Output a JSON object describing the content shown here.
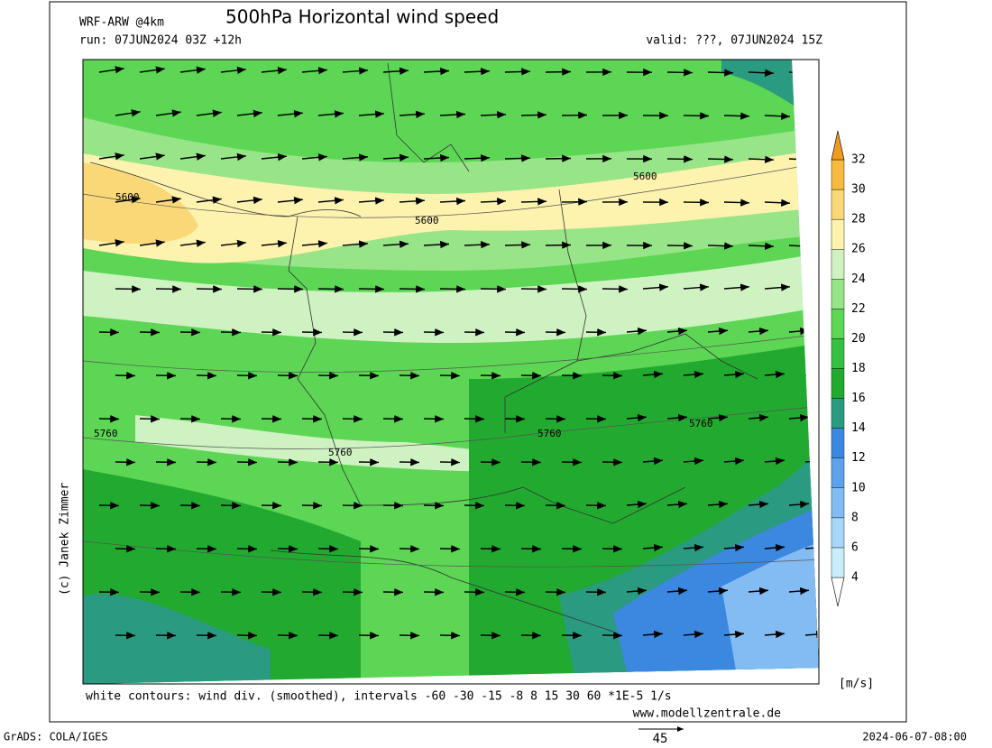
{
  "header": {
    "model": "WRF-ARW @4km",
    "title": "500hPa Horizontal wind speed",
    "run": "run: 07JUN2024 03Z +12h",
    "valid": "valid: ???, 07JUN2024 15Z"
  },
  "map": {
    "contour_labels": [
      "5600",
      "5600",
      "5600",
      "5760",
      "5760",
      "5760",
      "5760"
    ]
  },
  "legend": {
    "levels": [
      4,
      6,
      8,
      10,
      12,
      14,
      16,
      18,
      20,
      22,
      24,
      26,
      28,
      30,
      32
    ],
    "colors": [
      "#ffffff",
      "#c8eefa",
      "#a6d6f8",
      "#82bcf2",
      "#5ea2ea",
      "#3c88e0",
      "#2a9a80",
      "#22aa30",
      "#34c040",
      "#5cd654",
      "#98e488",
      "#cff2c2",
      "#fdf2ae",
      "#fad878",
      "#f5ba3e",
      "#f09a20"
    ],
    "unit": "[m/s]"
  },
  "footer": {
    "contours_note": "white contours: wind div. (smoothed), intervals -60 -30 -15 -8 8 15 30 60 *1E-5 1/s",
    "website": "www.modellzentrale.de",
    "credit": "(c) Janek Zimmer",
    "software": "GrADS: COLA/IGES",
    "arrow_scale": "45",
    "timestamp": "2024-06-07-08:00"
  }
}
